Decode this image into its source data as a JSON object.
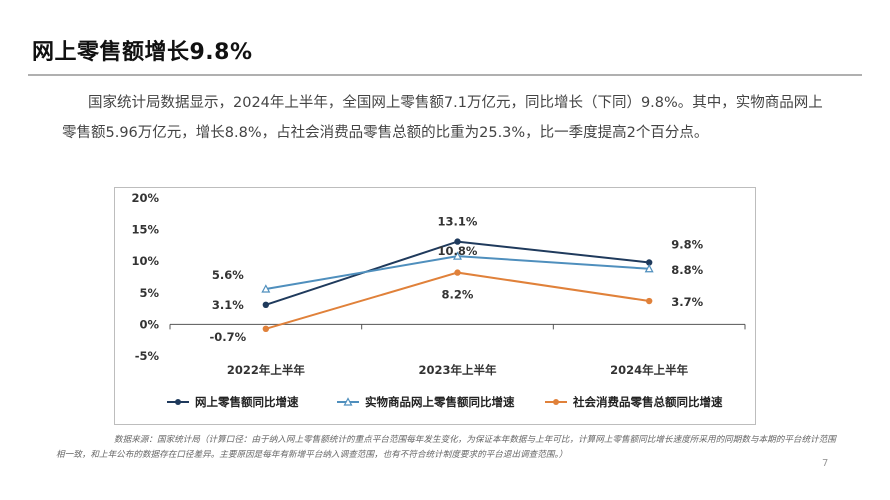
{
  "slide": {
    "title": "网上零售额增长9.8%",
    "body": "国家统计局数据显示，2024年上半年，全国网上零售额7.1万亿元，同比增长（下同）9.8%。其中，实物商品网上零售额5.96万亿元，增长8.8%，占社会消费品零售总额的比重为25.3%，比一季度提高2个百分点。",
    "source": "数据来源：国家统计局（计算口径：由于纳入网上零售额统计的重点平台范围每年发生变化，为保证本年数据与上年可比，计算网上零售额同比增长速度所采用的同期数与本期的平台统计范围相一致，和上年公布的数据存在口径差异。主要原因是每年有新增平台纳入调查范围，也有不符合统计制度要求的平台退出调查范围。）",
    "page_number": "7"
  },
  "chart_data": {
    "type": "line",
    "categories": [
      "2022年上半年",
      "2023年上半年",
      "2024年上半年"
    ],
    "series": [
      {
        "name": "网上零售额同比增速",
        "values": [
          3.1,
          13.1,
          9.8
        ],
        "labels": [
          "3.1%",
          "13.1%",
          "9.8%"
        ],
        "color": "#1f3a5c",
        "marker": "circle"
      },
      {
        "name": "实物商品网上零售额同比增速",
        "values": [
          5.6,
          10.8,
          8.8
        ],
        "labels": [
          "5.6%",
          "10.8%",
          "8.8%"
        ],
        "color": "#4f8fbd",
        "marker": "triangle"
      },
      {
        "name": "社会消费品零售总额同比增速",
        "values": [
          -0.7,
          8.2,
          3.7
        ],
        "labels": [
          "-0.7%",
          "8.2%",
          "3.7%"
        ],
        "color": "#e0813a",
        "marker": "circle"
      }
    ],
    "yticks": [
      "20%",
      "15%",
      "10%",
      "5%",
      "0%",
      "-5%"
    ],
    "ytick_values": [
      20,
      15,
      10,
      5,
      0,
      -5
    ],
    "ylim": [
      -5,
      20
    ],
    "grid": false,
    "legend_position": "bottom"
  }
}
